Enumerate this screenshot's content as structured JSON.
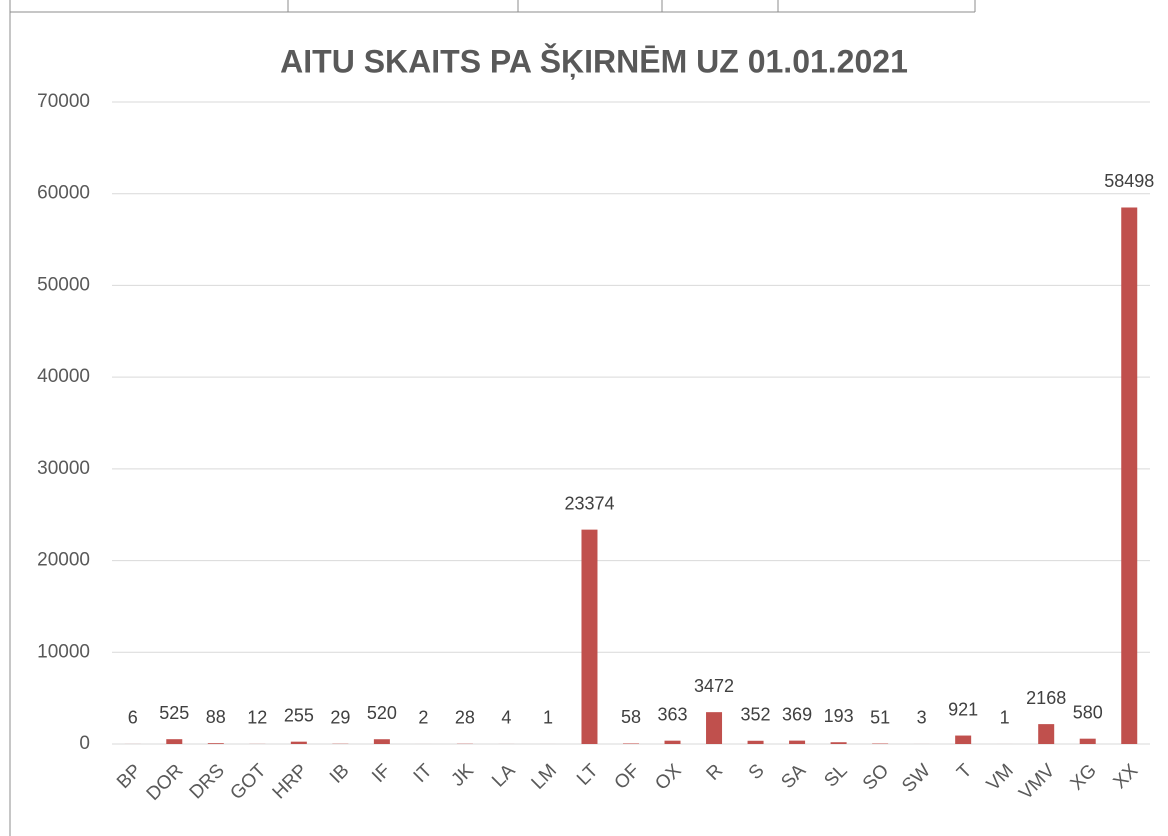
{
  "chart_data": {
    "type": "bar",
    "title": "AITU SKAITS PA ŠĶIRNĒM UZ 01.01.2021",
    "categories": [
      "BP",
      "DOR",
      "DRS",
      "GOT",
      "HRP",
      "IB",
      "IF",
      "IT",
      "JK",
      "LA",
      "LM",
      "LT",
      "OF",
      "OX",
      "R",
      "S",
      "SA",
      "SL",
      "SO",
      "SW",
      "T",
      "VM",
      "VMV",
      "XG",
      "XX"
    ],
    "values": [
      6,
      525,
      88,
      12,
      255,
      29,
      520,
      2,
      28,
      4,
      1,
      23374,
      58,
      363,
      3472,
      352,
      369,
      193,
      51,
      3,
      921,
      1,
      2168,
      580,
      58498
    ],
    "color": "#c0504d",
    "ylim": [
      0,
      70000
    ],
    "yticks": [
      0,
      10000,
      20000,
      30000,
      40000,
      50000,
      60000,
      70000
    ],
    "grid": true
  }
}
